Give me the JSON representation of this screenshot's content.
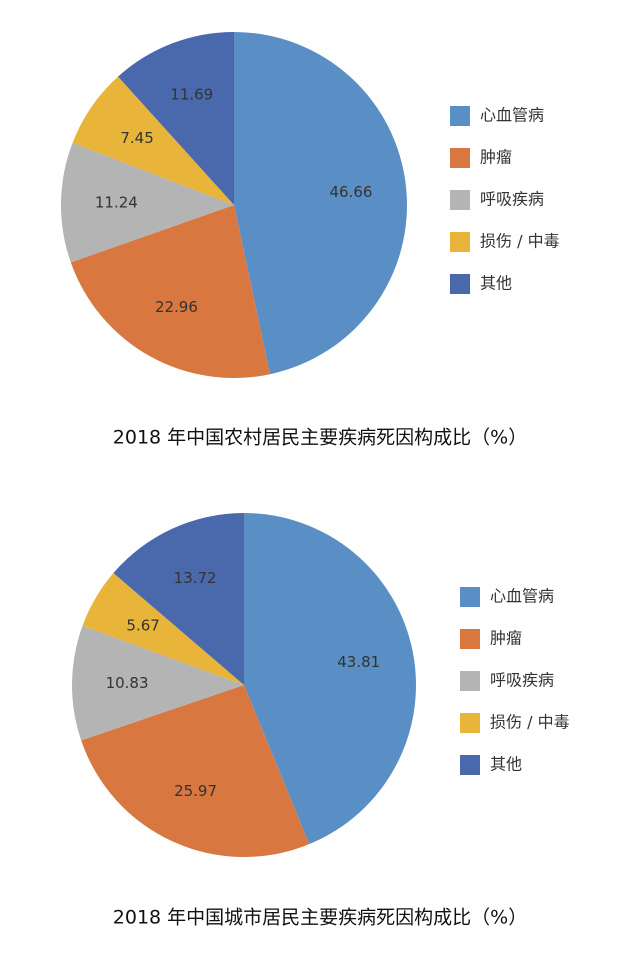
{
  "chart_data": [
    {
      "type": "pie",
      "title": "2018 年中国农村居民主要疾病死因构成比（%）",
      "categories": [
        "心血管病",
        "肿瘤",
        "呼吸疾病",
        "损伤 / 中毒",
        "其他"
      ],
      "values": [
        46.66,
        22.96,
        11.24,
        7.45,
        11.69
      ],
      "colors": [
        "#5a8fc6",
        "#d8773f",
        "#b4b4b4",
        "#e8b43a",
        "#4a69ac"
      ]
    },
    {
      "type": "pie",
      "title": "2018 年中国城市居民主要疾病死因构成比（%）",
      "categories": [
        "心血管病",
        "肿瘤",
        "呼吸疾病",
        "损伤 / 中毒",
        "其他"
      ],
      "values": [
        43.81,
        25.97,
        10.83,
        5.67,
        13.72
      ],
      "colors": [
        "#5a8fc6",
        "#d8773f",
        "#b4b4b4",
        "#e8b43a",
        "#4a69ac"
      ]
    }
  ]
}
